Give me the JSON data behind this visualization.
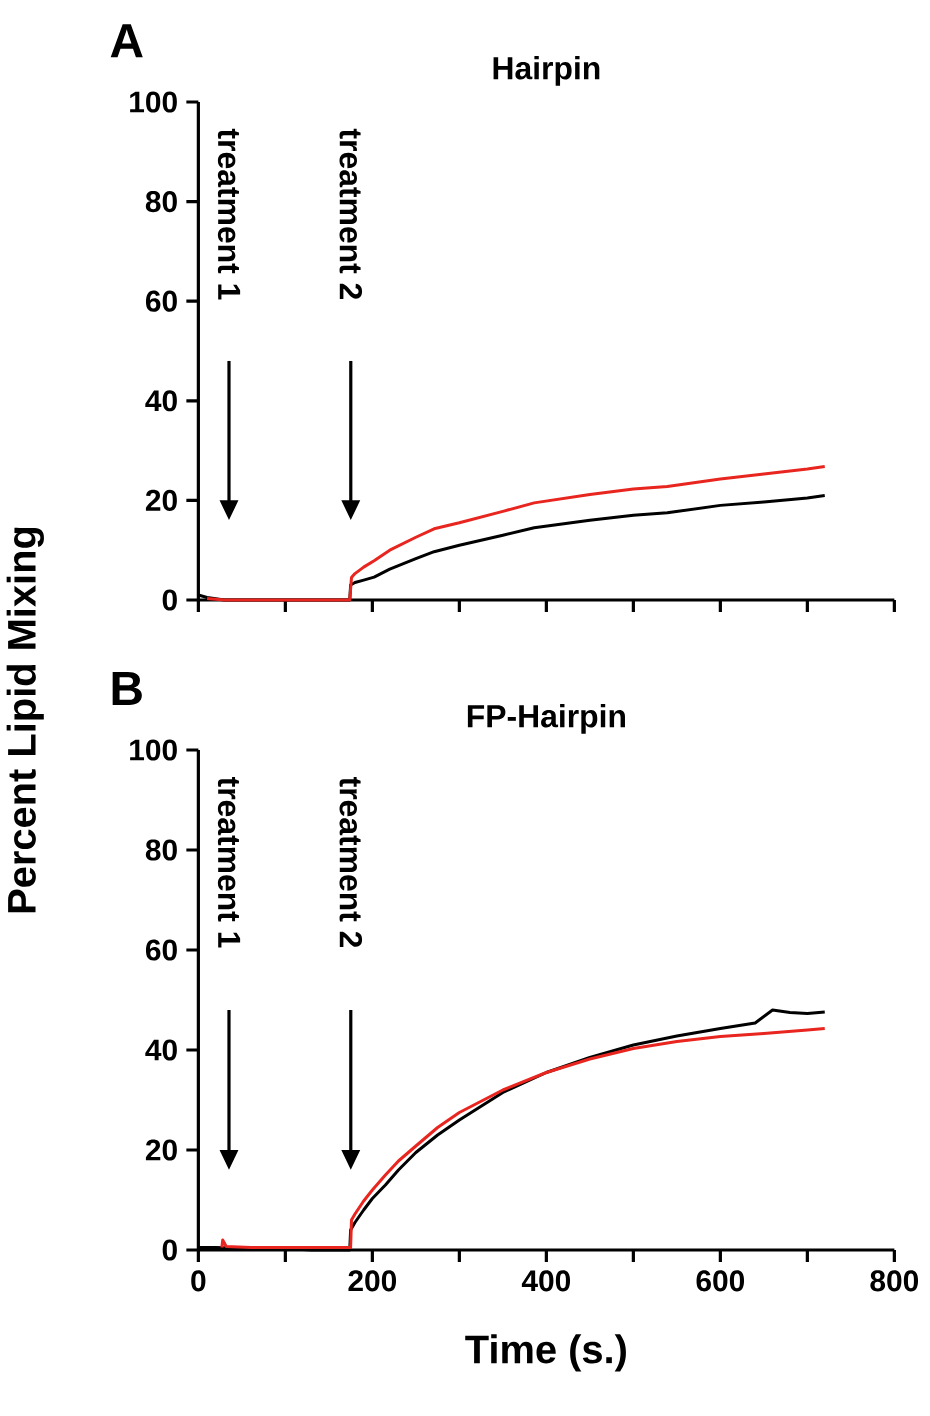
{
  "chart_data": [
    {
      "type": "line",
      "title": "Hairpin",
      "xlim": [
        0,
        800
      ],
      "ylim": [
        0,
        100
      ],
      "xticks": [
        0,
        {
          "value": 100,
          "label": null
        },
        200,
        {
          "value": 300,
          "label": null
        },
        400,
        {
          "value": 500,
          "label": null
        },
        600,
        {
          "value": 700,
          "label": null
        },
        800
      ],
      "yticks": [
        0,
        20,
        40,
        60,
        80,
        100
      ],
      "tick_labels": "y",
      "annotations": [
        "A",
        "treatment 1",
        "treatment 2"
      ],
      "series": [
        {
          "color": "#000000",
          "x": [
            0,
            10,
            30,
            60,
            100,
            140,
            174,
            175,
            180,
            190,
            202,
            220,
            250,
            271,
            300,
            350,
            386,
            450,
            500,
            539,
            600,
            650,
            700,
            720
          ],
          "values": [
            1,
            0.5,
            0,
            0,
            0,
            0,
            0,
            3,
            3.5,
            4,
            4.6,
            6.2,
            8.3,
            9.7,
            11,
            13,
            14.5,
            16,
            17,
            17.5,
            19,
            19.7,
            20.5,
            21
          ]
        },
        {
          "color": "#e8251f",
          "x": [
            10,
            30,
            60,
            100,
            140,
            174,
            176,
            180,
            190,
            202,
            220,
            250,
            271,
            300,
            350,
            386,
            450,
            500,
            539,
            600,
            650,
            700,
            720
          ],
          "values": [
            0.3,
            0,
            0,
            0,
            0,
            0,
            4.5,
            5.3,
            6.6,
            7.9,
            10,
            12.6,
            14.3,
            15.5,
            17.8,
            19.5,
            21.2,
            22.3,
            22.8,
            24.3,
            25.3,
            26.3,
            26.8
          ]
        }
      ]
    },
    {
      "type": "line",
      "title": "FP-Hairpin",
      "xlabel": "Time (s.)",
      "ylabel": "Percent Lipid Mixing",
      "xlim": [
        0,
        800
      ],
      "ylim": [
        0,
        100
      ],
      "xticks": [
        0,
        {
          "value": 100,
          "label": null
        },
        200,
        {
          "value": 300,
          "label": null
        },
        400,
        {
          "value": 500,
          "label": null
        },
        600,
        {
          "value": 700,
          "label": null
        },
        800
      ],
      "yticks": [
        0,
        20,
        40,
        60,
        80,
        100
      ],
      "annotations": [
        "B",
        "treatment 1",
        "treatment 2"
      ],
      "series": [
        {
          "color": "#000000",
          "x": [
            0,
            20,
            60,
            100,
            130,
            174,
            175,
            180,
            190,
            200,
            215,
            230,
            250,
            275,
            300,
            350,
            400,
            450,
            500,
            550,
            600,
            640,
            660,
            680,
            700,
            720
          ],
          "values": [
            0.5,
            0.5,
            0.3,
            0.3,
            0,
            0,
            4,
            5.5,
            8,
            10.3,
            13,
            16,
            19.5,
            23,
            26,
            31.5,
            35.5,
            38.5,
            41,
            42.8,
            44.3,
            45.4,
            48,
            47.5,
            47.3,
            47.6
          ]
        },
        {
          "color": "#e8251f",
          "x": [
            27,
            28,
            32,
            60,
            100,
            140,
            175,
            176,
            180,
            190,
            200,
            215,
            230,
            250,
            275,
            300,
            350,
            400,
            450,
            500,
            550,
            600,
            650,
            700,
            720
          ],
          "values": [
            0.5,
            2,
            0.7,
            0.5,
            0.5,
            0.5,
            0.5,
            6,
            7.2,
            9.8,
            12,
            15,
            17.8,
            20.8,
            24.5,
            27.5,
            32,
            35.5,
            38.2,
            40.3,
            41.7,
            42.7,
            43.3,
            44,
            44.3
          ]
        }
      ]
    }
  ]
}
